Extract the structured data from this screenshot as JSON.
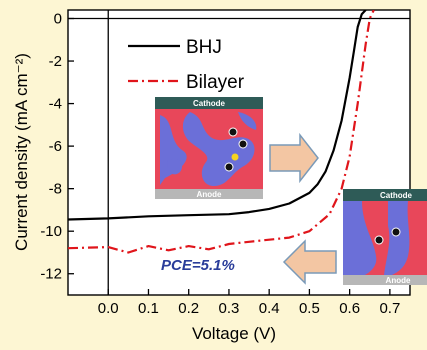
{
  "chart_data": {
    "type": "line",
    "xlabel": "Voltage (V)",
    "ylabel": "Current density (mA cm⁻²)",
    "xlim": [
      -0.1,
      0.75
    ],
    "ylim": [
      -13,
      0.4
    ],
    "x_ticks": [
      0.0,
      0.1,
      0.2,
      0.3,
      0.4,
      0.5,
      0.6,
      0.7
    ],
    "x_tick_labels": [
      "0.0",
      "0.1",
      "0.2",
      "0.3",
      "0.4",
      "0.5",
      "0.6",
      "0.7"
    ],
    "y_ticks": [
      0,
      -2,
      -4,
      -6,
      -8,
      -10,
      -12
    ],
    "y_tick_labels": [
      "0",
      "-2",
      "-4",
      "-6",
      "-8",
      "-10",
      "-12"
    ],
    "legend_position": "top-center",
    "series": [
      {
        "name": "BHJ",
        "style": "solid",
        "color": "#000000",
        "x": [
          -0.1,
          0.0,
          0.1,
          0.2,
          0.3,
          0.35,
          0.4,
          0.45,
          0.5,
          0.52,
          0.54,
          0.56,
          0.58,
          0.6,
          0.61,
          0.62,
          0.63,
          0.64
        ],
        "y": [
          -9.45,
          -9.4,
          -9.3,
          -9.25,
          -9.2,
          -9.1,
          -8.95,
          -8.7,
          -8.2,
          -7.8,
          -7.2,
          -6.2,
          -4.8,
          -2.8,
          -1.6,
          -0.4,
          0.2,
          0.4
        ]
      },
      {
        "name": "Bilayer",
        "style": "dash-dot",
        "color": "#e0151b",
        "x": [
          -0.1,
          0.0,
          0.05,
          0.1,
          0.15,
          0.2,
          0.25,
          0.3,
          0.35,
          0.4,
          0.45,
          0.5,
          0.55,
          0.58,
          0.6,
          0.62,
          0.64,
          0.65,
          0.66
        ],
        "y": [
          -10.8,
          -10.75,
          -11.0,
          -10.7,
          -10.9,
          -10.7,
          -10.85,
          -10.6,
          -10.5,
          -10.4,
          -10.3,
          -10.0,
          -9.2,
          -8.0,
          -6.5,
          -4.0,
          -1.2,
          0.0,
          0.4
        ]
      }
    ],
    "annotations": {
      "pce": "PCE=5.1%",
      "inset_left_top": "Cathode",
      "inset_left_bottom": "Anode",
      "inset_right_top": "Cathode",
      "inset_right_bottom": "Anode"
    }
  }
}
